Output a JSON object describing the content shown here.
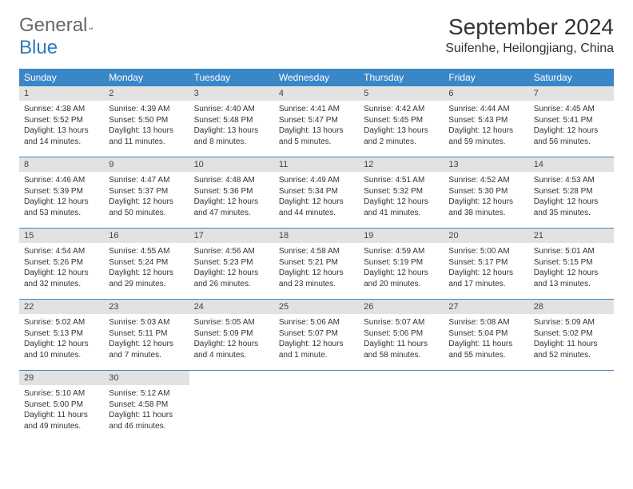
{
  "logo": {
    "part1": "General",
    "part2": "Blue"
  },
  "title": "September 2024",
  "location": "Suifenhe, Heilongjiang, China",
  "colors": {
    "header_bg": "#3a87c7",
    "header_text": "#ffffff",
    "daynum_bg": "#e2e2e2",
    "divider": "#3a87c7",
    "logo_blue": "#2f79b9"
  },
  "weekdays": [
    "Sunday",
    "Monday",
    "Tuesday",
    "Wednesday",
    "Thursday",
    "Friday",
    "Saturday"
  ],
  "weeks": [
    [
      {
        "num": "1",
        "sunrise": "Sunrise: 4:38 AM",
        "sunset": "Sunset: 5:52 PM",
        "day1": "Daylight: 13 hours",
        "day2": "and 14 minutes."
      },
      {
        "num": "2",
        "sunrise": "Sunrise: 4:39 AM",
        "sunset": "Sunset: 5:50 PM",
        "day1": "Daylight: 13 hours",
        "day2": "and 11 minutes."
      },
      {
        "num": "3",
        "sunrise": "Sunrise: 4:40 AM",
        "sunset": "Sunset: 5:48 PM",
        "day1": "Daylight: 13 hours",
        "day2": "and 8 minutes."
      },
      {
        "num": "4",
        "sunrise": "Sunrise: 4:41 AM",
        "sunset": "Sunset: 5:47 PM",
        "day1": "Daylight: 13 hours",
        "day2": "and 5 minutes."
      },
      {
        "num": "5",
        "sunrise": "Sunrise: 4:42 AM",
        "sunset": "Sunset: 5:45 PM",
        "day1": "Daylight: 13 hours",
        "day2": "and 2 minutes."
      },
      {
        "num": "6",
        "sunrise": "Sunrise: 4:44 AM",
        "sunset": "Sunset: 5:43 PM",
        "day1": "Daylight: 12 hours",
        "day2": "and 59 minutes."
      },
      {
        "num": "7",
        "sunrise": "Sunrise: 4:45 AM",
        "sunset": "Sunset: 5:41 PM",
        "day1": "Daylight: 12 hours",
        "day2": "and 56 minutes."
      }
    ],
    [
      {
        "num": "8",
        "sunrise": "Sunrise: 4:46 AM",
        "sunset": "Sunset: 5:39 PM",
        "day1": "Daylight: 12 hours",
        "day2": "and 53 minutes."
      },
      {
        "num": "9",
        "sunrise": "Sunrise: 4:47 AM",
        "sunset": "Sunset: 5:37 PM",
        "day1": "Daylight: 12 hours",
        "day2": "and 50 minutes."
      },
      {
        "num": "10",
        "sunrise": "Sunrise: 4:48 AM",
        "sunset": "Sunset: 5:36 PM",
        "day1": "Daylight: 12 hours",
        "day2": "and 47 minutes."
      },
      {
        "num": "11",
        "sunrise": "Sunrise: 4:49 AM",
        "sunset": "Sunset: 5:34 PM",
        "day1": "Daylight: 12 hours",
        "day2": "and 44 minutes."
      },
      {
        "num": "12",
        "sunrise": "Sunrise: 4:51 AM",
        "sunset": "Sunset: 5:32 PM",
        "day1": "Daylight: 12 hours",
        "day2": "and 41 minutes."
      },
      {
        "num": "13",
        "sunrise": "Sunrise: 4:52 AM",
        "sunset": "Sunset: 5:30 PM",
        "day1": "Daylight: 12 hours",
        "day2": "and 38 minutes."
      },
      {
        "num": "14",
        "sunrise": "Sunrise: 4:53 AM",
        "sunset": "Sunset: 5:28 PM",
        "day1": "Daylight: 12 hours",
        "day2": "and 35 minutes."
      }
    ],
    [
      {
        "num": "15",
        "sunrise": "Sunrise: 4:54 AM",
        "sunset": "Sunset: 5:26 PM",
        "day1": "Daylight: 12 hours",
        "day2": "and 32 minutes."
      },
      {
        "num": "16",
        "sunrise": "Sunrise: 4:55 AM",
        "sunset": "Sunset: 5:24 PM",
        "day1": "Daylight: 12 hours",
        "day2": "and 29 minutes."
      },
      {
        "num": "17",
        "sunrise": "Sunrise: 4:56 AM",
        "sunset": "Sunset: 5:23 PM",
        "day1": "Daylight: 12 hours",
        "day2": "and 26 minutes."
      },
      {
        "num": "18",
        "sunrise": "Sunrise: 4:58 AM",
        "sunset": "Sunset: 5:21 PM",
        "day1": "Daylight: 12 hours",
        "day2": "and 23 minutes."
      },
      {
        "num": "19",
        "sunrise": "Sunrise: 4:59 AM",
        "sunset": "Sunset: 5:19 PM",
        "day1": "Daylight: 12 hours",
        "day2": "and 20 minutes."
      },
      {
        "num": "20",
        "sunrise": "Sunrise: 5:00 AM",
        "sunset": "Sunset: 5:17 PM",
        "day1": "Daylight: 12 hours",
        "day2": "and 17 minutes."
      },
      {
        "num": "21",
        "sunrise": "Sunrise: 5:01 AM",
        "sunset": "Sunset: 5:15 PM",
        "day1": "Daylight: 12 hours",
        "day2": "and 13 minutes."
      }
    ],
    [
      {
        "num": "22",
        "sunrise": "Sunrise: 5:02 AM",
        "sunset": "Sunset: 5:13 PM",
        "day1": "Daylight: 12 hours",
        "day2": "and 10 minutes."
      },
      {
        "num": "23",
        "sunrise": "Sunrise: 5:03 AM",
        "sunset": "Sunset: 5:11 PM",
        "day1": "Daylight: 12 hours",
        "day2": "and 7 minutes."
      },
      {
        "num": "24",
        "sunrise": "Sunrise: 5:05 AM",
        "sunset": "Sunset: 5:09 PM",
        "day1": "Daylight: 12 hours",
        "day2": "and 4 minutes."
      },
      {
        "num": "25",
        "sunrise": "Sunrise: 5:06 AM",
        "sunset": "Sunset: 5:07 PM",
        "day1": "Daylight: 12 hours",
        "day2": "and 1 minute."
      },
      {
        "num": "26",
        "sunrise": "Sunrise: 5:07 AM",
        "sunset": "Sunset: 5:06 PM",
        "day1": "Daylight: 11 hours",
        "day2": "and 58 minutes."
      },
      {
        "num": "27",
        "sunrise": "Sunrise: 5:08 AM",
        "sunset": "Sunset: 5:04 PM",
        "day1": "Daylight: 11 hours",
        "day2": "and 55 minutes."
      },
      {
        "num": "28",
        "sunrise": "Sunrise: 5:09 AM",
        "sunset": "Sunset: 5:02 PM",
        "day1": "Daylight: 11 hours",
        "day2": "and 52 minutes."
      }
    ],
    [
      {
        "num": "29",
        "sunrise": "Sunrise: 5:10 AM",
        "sunset": "Sunset: 5:00 PM",
        "day1": "Daylight: 11 hours",
        "day2": "and 49 minutes."
      },
      {
        "num": "30",
        "sunrise": "Sunrise: 5:12 AM",
        "sunset": "Sunset: 4:58 PM",
        "day1": "Daylight: 11 hours",
        "day2": "and 46 minutes."
      },
      null,
      null,
      null,
      null,
      null
    ]
  ]
}
